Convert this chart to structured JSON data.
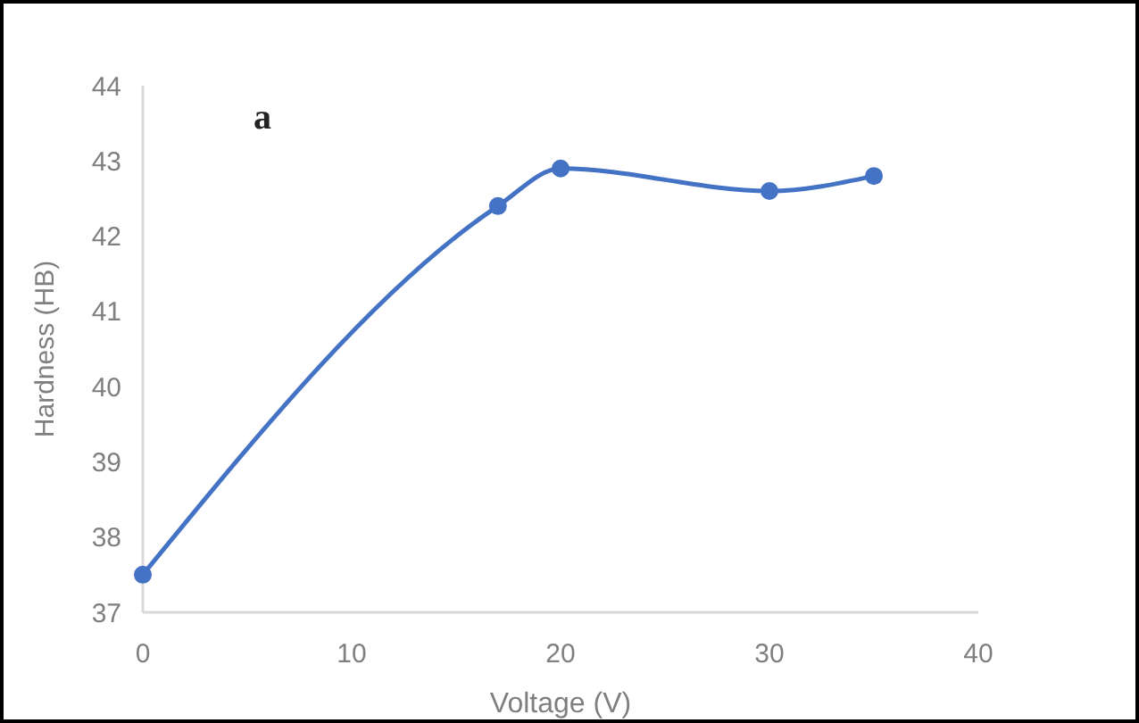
{
  "chart_data": {
    "type": "line",
    "xlabel": "Voltage (V)",
    "ylabel": "Hardness (HB)",
    "annotations": [
      "a"
    ],
    "x": [
      0,
      17,
      20,
      30,
      35
    ],
    "series": [
      {
        "color": "#4472c4",
        "values": [
          37.5,
          42.4,
          42.9,
          42.6,
          42.8
        ]
      }
    ],
    "xlim": [
      0,
      40
    ],
    "xticks": [
      0,
      10,
      20,
      30,
      40
    ],
    "ylim": [
      37,
      44
    ],
    "yticks": [
      37,
      38,
      39,
      40,
      41,
      42,
      43,
      44
    ],
    "grid": false,
    "marker": "circle",
    "line_style": "solid"
  }
}
